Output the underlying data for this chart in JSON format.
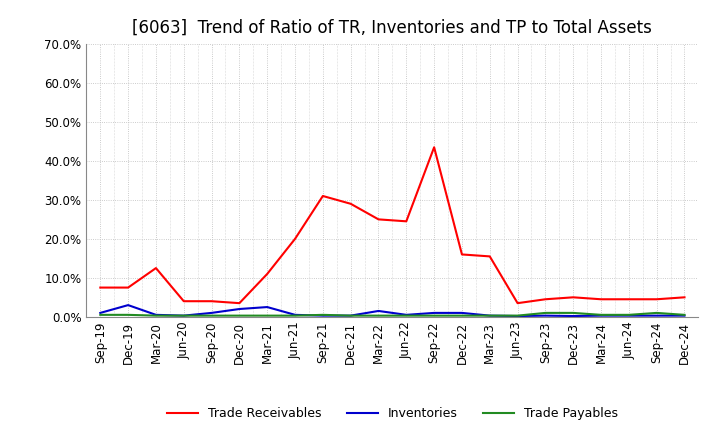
{
  "title": "[6063]  Trend of Ratio of TR, Inventories and TP to Total Assets",
  "labels": [
    "Sep-19",
    "Dec-19",
    "Mar-20",
    "Jun-20",
    "Sep-20",
    "Dec-20",
    "Mar-21",
    "Jun-21",
    "Sep-21",
    "Dec-21",
    "Mar-22",
    "Jun-22",
    "Sep-22",
    "Dec-22",
    "Mar-23",
    "Jun-23",
    "Sep-23",
    "Dec-23",
    "Mar-24",
    "Jun-24",
    "Sep-24",
    "Dec-24"
  ],
  "trade_receivables": [
    7.5,
    7.5,
    12.5,
    4.0,
    4.0,
    3.5,
    11.0,
    20.0,
    31.0,
    29.0,
    25.0,
    24.5,
    43.5,
    16.0,
    15.5,
    3.5,
    4.5,
    5.0,
    4.5,
    4.5,
    4.5,
    5.0
  ],
  "inventories": [
    1.0,
    3.0,
    0.5,
    0.3,
    1.0,
    2.0,
    2.5,
    0.5,
    0.3,
    0.3,
    1.5,
    0.5,
    1.0,
    1.0,
    0.3,
    0.2,
    0.3,
    0.2,
    0.3,
    0.3,
    0.3,
    0.3
  ],
  "trade_payables": [
    0.5,
    0.5,
    0.3,
    0.3,
    0.3,
    0.3,
    0.3,
    0.3,
    0.5,
    0.3,
    0.3,
    0.3,
    0.3,
    0.3,
    0.3,
    0.3,
    1.0,
    1.0,
    0.5,
    0.5,
    1.0,
    0.5
  ],
  "ylim": [
    0,
    70
  ],
  "yticks": [
    0,
    10,
    20,
    30,
    40,
    50,
    60,
    70
  ],
  "tr_color": "#ff0000",
  "inv_color": "#0000cd",
  "tp_color": "#228b22",
  "bg_color": "#ffffff",
  "grid_color": "#bbbbbb",
  "title_fontsize": 12,
  "tick_fontsize": 8.5,
  "legend_labels": [
    "Trade Receivables",
    "Inventories",
    "Trade Payables"
  ]
}
